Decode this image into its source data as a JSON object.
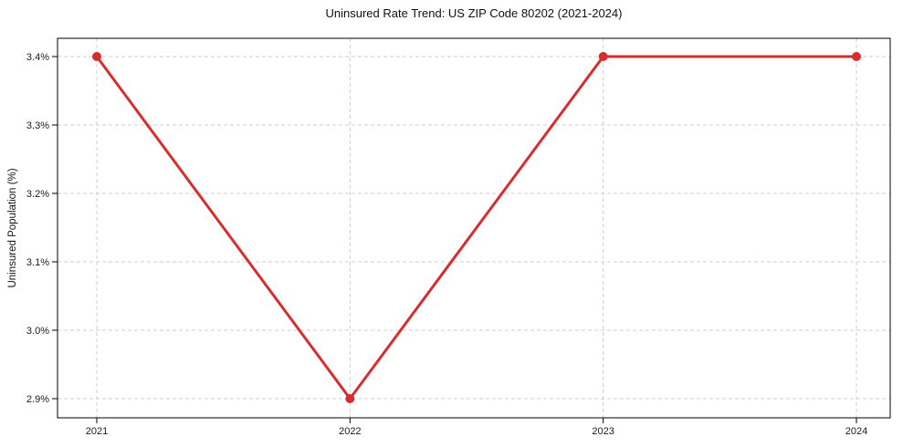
{
  "figure": {
    "background": "#ffffff"
  },
  "chart_data": {
    "type": "line",
    "title": "Uninsured Rate Trend: US ZIP Code 80202 (2021-2024)",
    "xlabel": "",
    "ylabel": "Uninsured Population (%)",
    "categories": [
      "2021",
      "2022",
      "2023",
      "2024"
    ],
    "series": [
      {
        "name": "Uninsured Rate",
        "values": [
          3.4,
          2.9,
          3.4,
          3.4
        ],
        "color": "#d62e2e",
        "marker": "circle",
        "marker_radius": 5,
        "line_width": 3
      }
    ],
    "y_ticks": [
      2.9,
      3.0,
      3.1,
      3.2,
      3.3,
      3.4
    ],
    "y_tick_labels": [
      "2.9%",
      "3.0%",
      "3.1%",
      "3.2%",
      "3.3%",
      "3.4%"
    ],
    "x_tick_labels": [
      "2021",
      "2022",
      "2023",
      "2024"
    ],
    "ylim": [
      2.87,
      3.43
    ],
    "grid": true,
    "grid_style": "dashed",
    "grid_color": "#cfcfcf",
    "axis_color": "#000000",
    "tick_label_color": "#1a1a1a",
    "legend_position": "none"
  }
}
